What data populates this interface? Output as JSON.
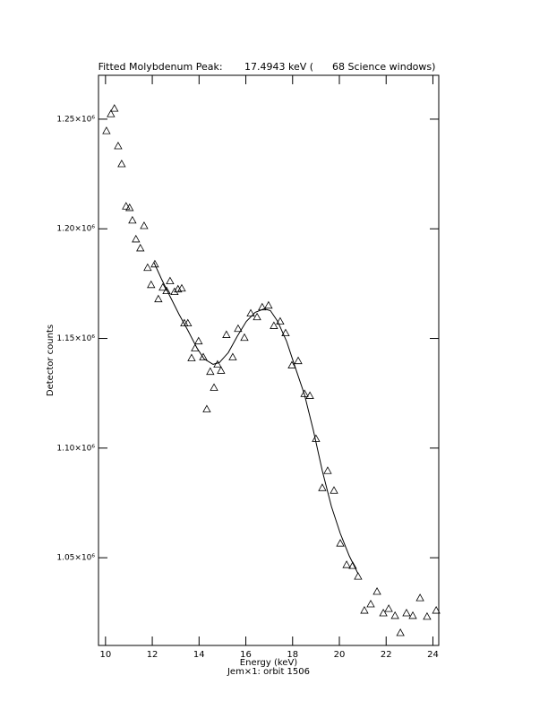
{
  "chart_data": {
    "type": "scatter",
    "title": "Fitted Molybdenum Peak:       17.4943 keV (      68 Science windows)",
    "x_label": "Energy (keV)",
    "subtitle": "Jem×1: orbit 1506",
    "y_label": "Detector counts",
    "xlim": [
      9.7,
      24.25
    ],
    "ylim": [
      1010000,
      1270000
    ],
    "xticks": [
      10,
      12,
      14,
      16,
      18,
      20,
      22,
      24
    ],
    "yticks": [
      {
        "value": 1050000,
        "label": "1.05×10⁶"
      },
      {
        "value": 1100000,
        "label": "1.10×10⁶"
      },
      {
        "value": 1150000,
        "label": "1.15×10⁶"
      },
      {
        "value": 1200000,
        "label": "1.20×10⁶"
      },
      {
        "value": 1250000,
        "label": "1.25×10⁶"
      }
    ],
    "series": [
      {
        "marker": "triangle",
        "color": "#000000",
        "x": [
          10.04,
          10.23,
          10.38,
          10.54,
          10.69,
          10.88,
          11.03,
          11.15,
          11.3,
          11.49,
          11.65,
          11.8,
          11.95,
          12.11,
          12.26,
          12.45,
          12.61,
          12.76,
          12.95,
          13.1,
          13.26,
          13.37,
          13.52,
          13.68,
          13.83,
          13.98,
          14.18,
          14.33,
          14.48,
          14.64,
          14.79,
          14.94,
          15.17,
          15.44,
          15.67,
          15.94,
          16.21,
          16.48,
          16.7,
          16.97,
          17.2,
          17.47,
          17.7,
          17.97,
          18.24,
          18.51,
          18.74,
          19.0,
          19.27,
          19.5,
          19.77,
          20.04,
          20.31,
          20.57,
          20.8,
          21.07,
          21.34,
          21.61,
          21.88,
          22.11,
          22.38,
          22.61,
          22.87,
          23.14,
          23.45,
          23.75,
          24.14
        ],
        "values": [
          1244700,
          1252400,
          1254900,
          1237800,
          1229600,
          1210300,
          1209600,
          1203900,
          1195300,
          1191200,
          1201400,
          1182300,
          1174500,
          1183900,
          1168000,
          1173300,
          1171700,
          1176200,
          1171300,
          1172500,
          1172900,
          1157000,
          1157000,
          1141100,
          1145600,
          1148800,
          1141500,
          1117800,
          1134900,
          1127600,
          1138200,
          1135400,
          1151700,
          1141500,
          1154500,
          1150400,
          1161500,
          1159800,
          1164300,
          1165100,
          1155800,
          1157800,
          1152500,
          1137800,
          1139800,
          1124800,
          1123900,
          1104300,
          1081900,
          1089700,
          1080700,
          1056600,
          1046800,
          1046400,
          1041500,
          1026000,
          1028900,
          1034600,
          1024800,
          1026800,
          1023600,
          1015800,
          1024800,
          1023600,
          1031700,
          1023200,
          1026000
        ]
      },
      {
        "marker": "line",
        "color": "#000000",
        "x": [
          12.07,
          12.38,
          12.76,
          13.14,
          13.52,
          13.91,
          14.21,
          14.6,
          14.87,
          15.25,
          15.63,
          16.02,
          16.4,
          16.78,
          17.05,
          17.36,
          17.74,
          18.12,
          18.51,
          18.89,
          19.27,
          19.66,
          20.04,
          20.42,
          20.8
        ],
        "values": [
          1184700,
          1177400,
          1169200,
          1161100,
          1153700,
          1145600,
          1140700,
          1138200,
          1139000,
          1143500,
          1150900,
          1157800,
          1161900,
          1163500,
          1162700,
          1157800,
          1148800,
          1136600,
          1124300,
          1108000,
          1089700,
          1073400,
          1061100,
          1050900,
          1042700
        ]
      }
    ]
  }
}
